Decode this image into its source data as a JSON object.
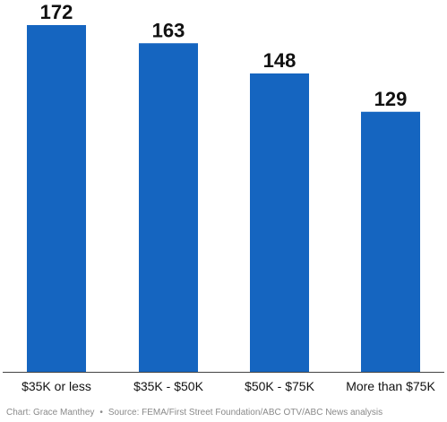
{
  "chart_data": {
    "type": "bar",
    "categories": [
      "$35K or less",
      "$35K - $50K",
      "$50K - $75K",
      "More than $75K"
    ],
    "values": [
      172,
      163,
      148,
      129
    ],
    "ylim": [
      0,
      180
    ],
    "grid": false,
    "legend": "none",
    "bar_color": "#1565c0"
  },
  "footer": {
    "chart_credit": "Chart: Grace Manthey",
    "separator": "•",
    "source": "Source: FEMA/First Street Foundation/ABC OTV/ABC News analysis"
  },
  "colors": {
    "bar": "#1565c0",
    "text": "#111111",
    "axis": "#444444",
    "footer_text": "#8a8a8a"
  }
}
